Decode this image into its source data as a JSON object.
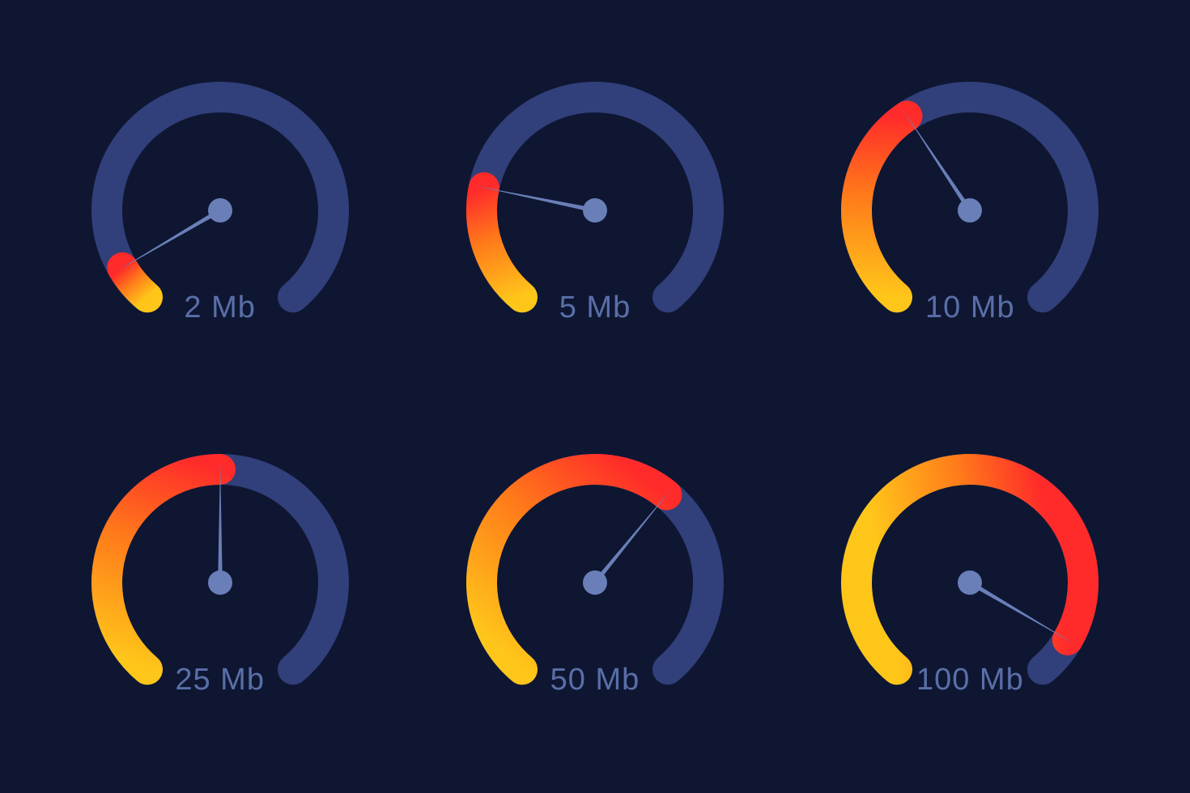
{
  "background_color": "#0e1632",
  "track_color": "#313f7a",
  "needle_color": "#6a7fb8",
  "hub_color": "#6a7fb8",
  "label_color": "#5a6fa8",
  "label_fontsize": 38,
  "gradient_start": "#ffc61a",
  "gradient_mid": "#ff7a1a",
  "gradient_end": "#ff2a2a",
  "gauge": {
    "radius": 140,
    "stroke_width": 38,
    "start_angle_deg": 230,
    "sweep_deg": 280,
    "needle_length": 150,
    "needle_width": 6,
    "hub_radius": 15
  },
  "gauges": [
    {
      "id": "g2",
      "label": "2 Mb",
      "fraction": 0.07
    },
    {
      "id": "g5",
      "label": "5 Mb",
      "fraction": 0.22
    },
    {
      "id": "g10",
      "label": "10 Mb",
      "fraction": 0.38
    },
    {
      "id": "g25",
      "label": "25 Mb",
      "fraction": 0.5
    },
    {
      "id": "g50",
      "label": "50 Mb",
      "fraction": 0.64
    },
    {
      "id": "g100",
      "label": "100 Mb",
      "fraction": 0.93
    }
  ]
}
